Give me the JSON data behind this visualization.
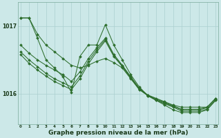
{
  "background_color": "#cce8e8",
  "grid_color": "#aacfcf",
  "line_color": "#2d6e2d",
  "marker_color": "#2d6e2d",
  "xlabel": "Graphe pression niveau de la mer (hPa)",
  "xlabel_fontsize": 6.5,
  "xticks": [
    0,
    1,
    2,
    3,
    4,
    5,
    6,
    7,
    8,
    9,
    10,
    11,
    12,
    13,
    14,
    15,
    16,
    17,
    18,
    19,
    20,
    21,
    22,
    23
  ],
  "yticks": [
    1016,
    1017
  ],
  "ylim": [
    1015.55,
    1017.35
  ],
  "xlim": [
    -0.3,
    23.3
  ],
  "series": [
    [
      1017.12,
      1017.12,
      1016.88,
      1016.72,
      1016.62,
      1016.52,
      1016.42,
      1016.38,
      1016.42,
      1016.48,
      1016.52,
      1016.46,
      1016.38,
      1016.22,
      1016.06,
      1015.98,
      1015.93,
      1015.88,
      1015.83,
      1015.8,
      1015.8,
      1015.8,
      1015.8,
      1015.93
    ],
    [
      1016.72,
      1016.6,
      1016.5,
      1016.42,
      1016.35,
      1016.28,
      1016.18,
      1016.32,
      1016.52,
      1016.68,
      1016.82,
      1016.58,
      1016.42,
      1016.25,
      1016.08,
      1015.98,
      1015.92,
      1015.87,
      1015.82,
      1015.77,
      1015.77,
      1015.77,
      1015.8,
      1015.93
    ],
    [
      1016.58,
      1016.45,
      1016.35,
      1016.26,
      1016.18,
      1016.12,
      1016.06,
      1016.22,
      1016.44,
      1016.62,
      1016.78,
      1016.55,
      1016.4,
      1016.23,
      1016.06,
      1015.97,
      1015.9,
      1015.85,
      1015.8,
      1015.74,
      1015.74,
      1015.74,
      1015.77,
      1015.9
    ],
    [
      1016.62,
      1016.5,
      1016.4,
      1016.3,
      1016.22,
      1016.16,
      1016.1,
      1016.26,
      1016.48,
      1016.65,
      1016.8,
      1016.56,
      1016.41,
      1016.24,
      1016.07,
      1015.97,
      1015.91,
      1015.86,
      1015.81,
      1015.76,
      1015.76,
      1015.76,
      1015.79,
      1015.91
    ],
    [
      1017.12,
      1017.12,
      1016.82,
      1016.5,
      1016.38,
      1016.25,
      1016.02,
      1016.55,
      1016.72,
      1016.72,
      1017.02,
      1016.72,
      1016.5,
      1016.28,
      1016.1,
      1015.97,
      1015.9,
      1015.83,
      1015.76,
      1015.72,
      1015.72,
      1015.72,
      1015.76,
      1015.9
    ]
  ]
}
